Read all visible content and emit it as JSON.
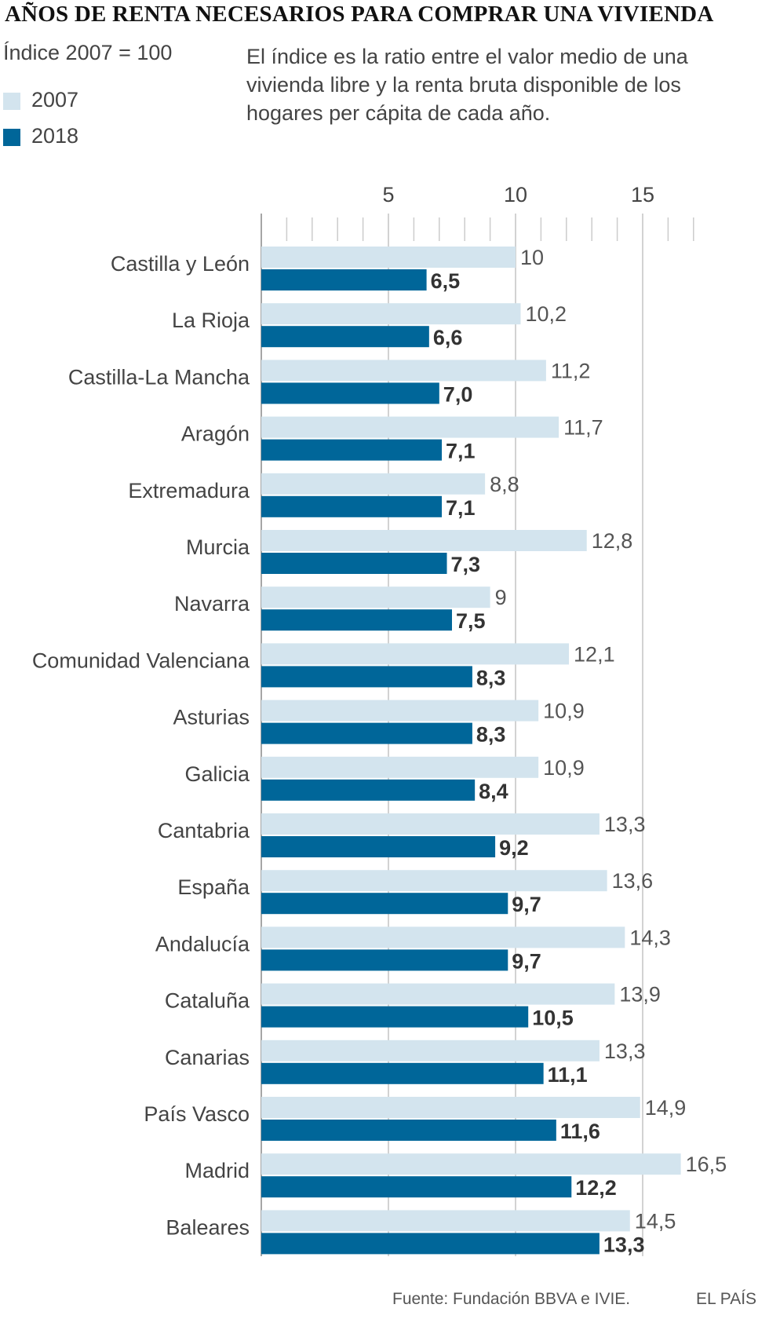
{
  "title": "AÑOS DE RENTA NECESARIOS PARA COMPRAR UNA VIVIENDA",
  "index_note": "Índice 2007 = 100",
  "description": "El índice es la ratio entre el valor medio de una vivienda libre y la renta bruta disponible de los hogares per cápita de cada año.",
  "legend": [
    {
      "label": "2007",
      "color": "#d3e4ee"
    },
    {
      "label": "2018",
      "color": "#006699"
    }
  ],
  "source": "Fuente: Fundación BBVA e IVIE.",
  "brand": "EL PAÍS",
  "chart_data": {
    "type": "bar",
    "orientation": "horizontal",
    "title": "AÑOS DE RENTA NECESARIOS PARA COMPRAR UNA VIVIENDA",
    "xlabel": "",
    "ylabel": "",
    "xlim": [
      0,
      17
    ],
    "x_ticks": [
      5,
      10,
      15
    ],
    "x_tick_labels": [
      "5",
      "10",
      "15"
    ],
    "minor_tick_step": 1,
    "categories": [
      "Castilla y León",
      "La Rioja",
      "Castilla-La Mancha",
      "Aragón",
      "Extremadura",
      "Murcia",
      "Navarra",
      "Comunidad Valenciana",
      "Asturias",
      "Galicia",
      "Cantabria",
      "España",
      "Andalucía",
      "Cataluña",
      "Canarias",
      "País Vasco",
      "Madrid",
      "Baleares"
    ],
    "series": [
      {
        "name": "2007",
        "color": "#d3e4ee",
        "values": [
          10,
          10.2,
          11.2,
          11.7,
          8.8,
          12.8,
          9,
          12.1,
          10.9,
          10.9,
          13.3,
          13.6,
          14.3,
          13.9,
          13.3,
          14.9,
          16.5,
          14.5
        ],
        "labels": [
          "10",
          "10,2",
          "11,2",
          "11,7",
          "8,8",
          "12,8",
          "9",
          "12,1",
          "10,9",
          "10,9",
          "13,3",
          "13,6",
          "14,3",
          "13,9",
          "13,3",
          "14,9",
          "16,5",
          "14,5"
        ]
      },
      {
        "name": "2018",
        "color": "#006699",
        "values": [
          6.5,
          6.6,
          7.0,
          7.1,
          7.1,
          7.3,
          7.5,
          8.3,
          8.3,
          8.4,
          9.2,
          9.7,
          9.7,
          10.5,
          11.1,
          11.6,
          12.2,
          13.3
        ],
        "labels": [
          "6,5",
          "6,6",
          "7,0",
          "7,1",
          "7,1",
          "7,3",
          "7,5",
          "8,3",
          "8,3",
          "8,4",
          "9,2",
          "9,7",
          "9,7",
          "10,5",
          "11,1",
          "11,6",
          "12,2",
          "13,3"
        ]
      }
    ],
    "legend_position": "top-left"
  }
}
